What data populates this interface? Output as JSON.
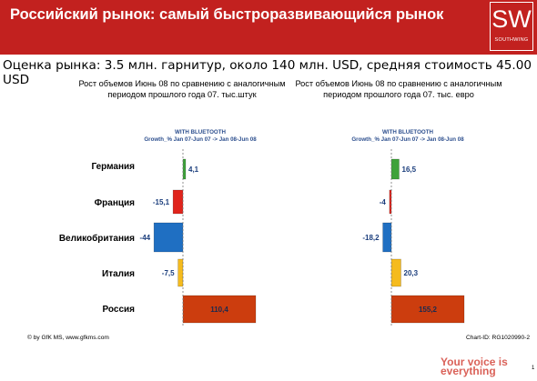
{
  "header": {
    "title": "Российский рынок: самый быстроразвивающийся рынок",
    "logo_text": "SW",
    "logo_sub": "SOUTHWING"
  },
  "subtitle": "Оценка рынка: 3.5 млн. гарнитур, около 140 млн. USD, средняя стоимость 45.00 USD",
  "chart_data": [
    {
      "type": "bar",
      "orientation": "horizontal",
      "title": "Рост объемов Июнь 08 по сравнению с аналогичным периодом прошлого года 07. тыс.штук",
      "subtitle": "WITH BLUETOOTH",
      "series_label": "Growth_% Jan 07-Jun 07 -> Jan 08-Jun 08",
      "categories": [
        "Германия",
        "Франция",
        "Великобритания",
        "Италия",
        "Россия"
      ],
      "value_labels": [
        "4,1",
        "-15,1",
        "-44",
        "-7,5",
        "110,4"
      ],
      "values": [
        4.1,
        -15.1,
        -44,
        -7.5,
        110.4
      ],
      "xlim": [
        -44,
        110.4
      ]
    },
    {
      "type": "bar",
      "orientation": "horizontal",
      "title": "Рост объемов Июнь 08 по сравнению с аналогичным периодом прошлого года 07. тыс. евро",
      "subtitle": "WITH BLUETOOTH",
      "series_label": "Growth_% Jan 07-Jun 07 -> Jan 08-Jun 08",
      "categories": [
        "Германия",
        "Франция",
        "Великобритания",
        "Италия",
        "Россия"
      ],
      "value_labels": [
        "16,5",
        "-4",
        "-18,2",
        "20,3",
        "155,2"
      ],
      "values": [
        16.5,
        -4,
        -18.2,
        20.3,
        155.2
      ],
      "xlim": [
        -18.2,
        155.2
      ]
    }
  ],
  "colors": [
    "#3ea23a",
    "#e0241c",
    "#1f6fc2",
    "#f5bb1e",
    "#cc3d0e"
  ],
  "value_text_color": "#1a3d7c",
  "footer": {
    "left": "© by GfK MS, www.gfkms.com",
    "right": "Chart-ID: RG1020990-2"
  },
  "slogan": "Your voice is everything",
  "page_number": "1"
}
